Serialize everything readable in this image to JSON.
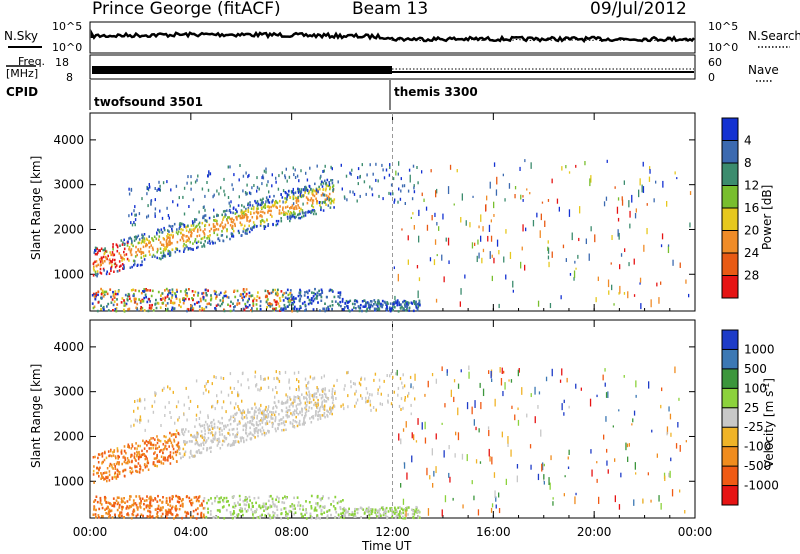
{
  "header": {
    "station": "Prince George (fitACF)",
    "beam": "Beam 13",
    "date": "09/Jul/2012"
  },
  "panels": {
    "nsky": {
      "left_label": "N.Sky",
      "right_label": "N.Search",
      "left_ticks": [
        "10^5",
        "10^0"
      ],
      "right_ticks": [
        "10^5",
        "10^0"
      ]
    },
    "freq": {
      "left_label_1": "Freq.",
      "left_label_2": "[MHz]",
      "left_ticks": [
        "18",
        "8"
      ],
      "right_label": "Nave",
      "right_ticks": [
        "60",
        "0"
      ]
    },
    "cpid": {
      "label": "CPID",
      "programs": [
        "twofsound 3501",
        "themis 3300"
      ]
    }
  },
  "chart_data": [
    {
      "type": "heatmap",
      "title": "",
      "xlabel": "Time UT",
      "ylabel": "Slant Range [km]",
      "x_ticks": [
        "00:00",
        "04:00",
        "08:00",
        "12:00",
        "16:00",
        "20:00",
        "00:00"
      ],
      "y_ticks": [
        1000,
        2000,
        3000,
        4000
      ],
      "ylim": [
        180,
        4600
      ],
      "colorbar": {
        "label": "Power [dB]",
        "ticks": [
          4,
          8,
          12,
          16,
          20,
          24,
          28
        ],
        "colors": [
          "#1432d2",
          "#3c6ab0",
          "#3c8c6e",
          "#78be2e",
          "#e6c81e",
          "#f08c28",
          "#e85a14",
          "#e61414"
        ]
      }
    },
    {
      "type": "heatmap",
      "title": "",
      "xlabel": "Time UT",
      "ylabel": "Slant Range [km]",
      "x_ticks": [
        "00:00",
        "04:00",
        "08:00",
        "12:00",
        "16:00",
        "20:00",
        "00:00"
      ],
      "y_ticks": [
        1000,
        2000,
        3000,
        4000
      ],
      "ylim": [
        180,
        4600
      ],
      "colorbar": {
        "label": "Velocity [m s^-1]",
        "ticks": [
          "1000",
          "500",
          "100",
          "25",
          "-25",
          "-100",
          "-500",
          "-1000"
        ],
        "colors": [
          "#1e3cc8",
          "#3c78b4",
          "#3c963c",
          "#8cd23c",
          "#c8c8c8",
          "#f0b428",
          "#f08c1e",
          "#f05a14",
          "#e61414"
        ]
      }
    }
  ]
}
